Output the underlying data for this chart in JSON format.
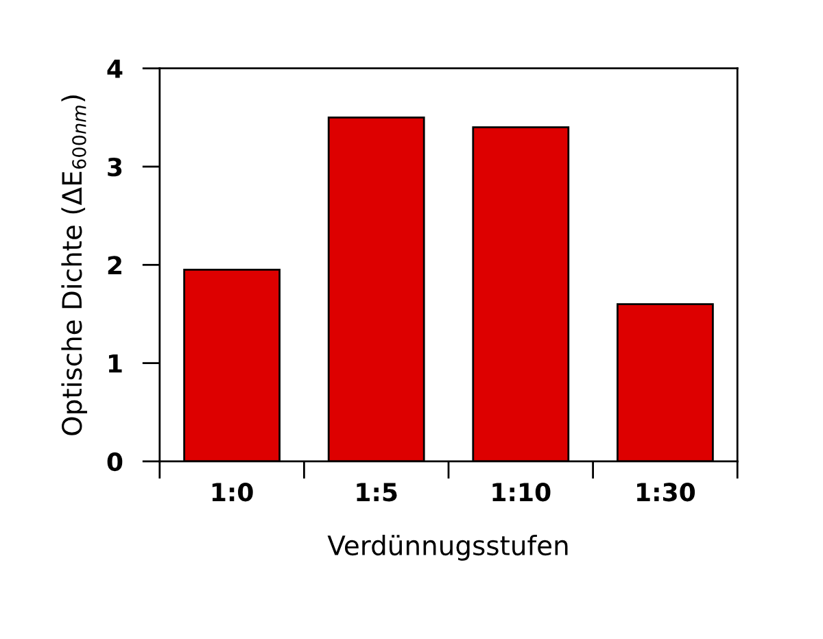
{
  "chart_data": {
    "type": "bar",
    "xlabel": "Verdünnugsstufen",
    "ylabel": "Optische Dichte (ΔE$_{600nm}$)",
    "categories": [
      "1:0",
      "1:5",
      "1:10",
      "1:30"
    ],
    "values": [
      1.95,
      3.5,
      3.4,
      1.6
    ],
    "color": "#dd0000",
    "ylim": [
      0,
      4
    ],
    "yticks": [
      0,
      1,
      2,
      3,
      4
    ],
    "grid": false,
    "legend": false
  }
}
